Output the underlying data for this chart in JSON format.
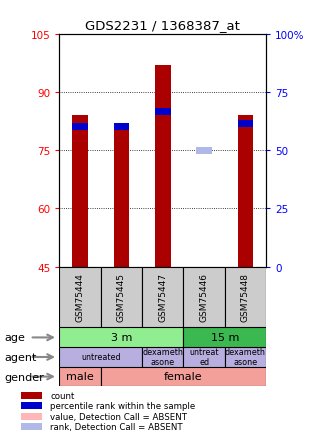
{
  "title": "GDS2231 / 1368387_at",
  "samples": [
    "GSM75444",
    "GSM75445",
    "GSM75447",
    "GSM75446",
    "GSM75448"
  ],
  "bar_bottom": 45,
  "count_values": [
    84,
    82,
    97,
    45,
    84
  ],
  "count_absent": [
    false,
    false,
    false,
    true,
    false
  ],
  "percentile_values": [
    81,
    81,
    85,
    75,
    82
  ],
  "percentile_absent": [
    false,
    false,
    false,
    true,
    false
  ],
  "ylim_left": [
    45,
    105
  ],
  "ylim_right": [
    0,
    100
  ],
  "yticks_left": [
    45,
    60,
    75,
    90,
    105
  ],
  "yticks_right": [
    0,
    25,
    50,
    75,
    100
  ],
  "ytick_labels_left": [
    "45",
    "60",
    "75",
    "90",
    "105"
  ],
  "ytick_labels_right": [
    "0",
    "25",
    "50",
    "75",
    "100%"
  ],
  "count_color": "#aa0000",
  "count_absent_color": "#ffb6b6",
  "percentile_color": "#0000cc",
  "percentile_absent_color": "#b0b8e8",
  "legend_items": [
    {
      "color": "#aa0000",
      "label": "count"
    },
    {
      "color": "#0000cc",
      "label": "percentile rank within the sample"
    },
    {
      "color": "#ffb6b6",
      "label": "value, Detection Call = ABSENT"
    },
    {
      "color": "#b0b8e8",
      "label": "rank, Detection Call = ABSENT"
    }
  ]
}
